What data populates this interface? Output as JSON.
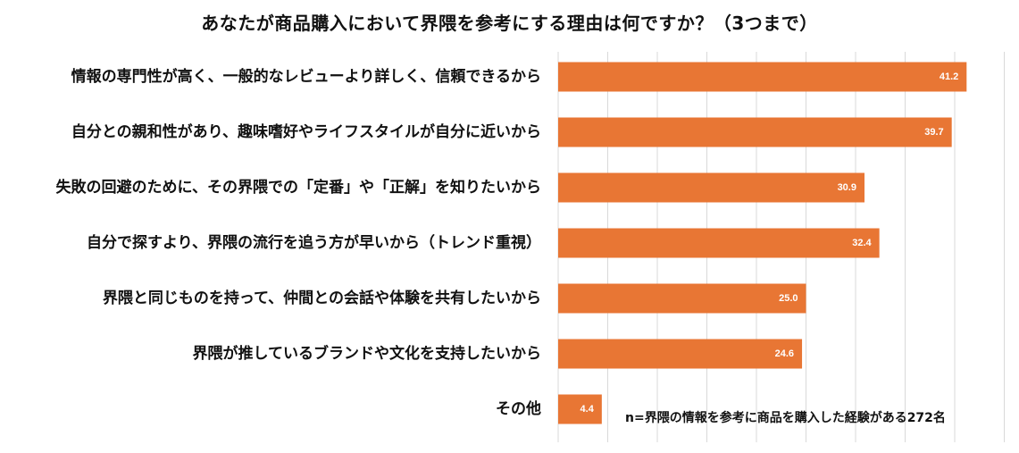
{
  "chart_data": {
    "type": "bar",
    "orientation": "horizontal",
    "title": "あなたが商品購入において界隈を参考にする理由は何ですか？（3つまで）",
    "categories": [
      "情報の専門性が高く、一般的なレビューより詳しく、信頼できるから",
      "自分との親和性があり、趣味嗜好やライフスタイルが自分に近いから",
      "失敗の回避のために、その界隈での「定番」や「正解」を知りたいから",
      "自分で探すより、界隈の流行を追う方が早いから（トレンド重視）",
      "界隈と同じものを持って、仲間との会話や体験を共有したいから",
      "界隈が推しているブランドや文化を支持したいから",
      "その他"
    ],
    "values": [
      41.2,
      39.7,
      30.9,
      32.4,
      25.0,
      24.6,
      4.4
    ],
    "value_labels": [
      "41.2",
      "39.7",
      "30.9",
      "32.4",
      "25.0",
      "24.6",
      "4.4"
    ],
    "xlim": [
      0,
      45
    ],
    "grid": true,
    "bar_color": "#E87634",
    "grid_color": "#D9D9D9",
    "note": "n=界隈の情報を参考に商品を購入した経験がある272名"
  }
}
